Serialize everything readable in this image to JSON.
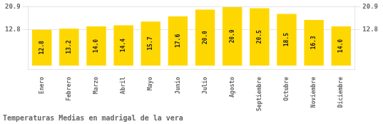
{
  "chart_data": {
    "type": "bar",
    "title": "Temperaturas Medias en madrigal de la vera",
    "categories": [
      "Enero",
      "Febrero",
      "Marzo",
      "Abril",
      "Mayo",
      "Junio",
      "Julio",
      "Agosto",
      "Septiembre",
      "Octubre",
      "Noviembre",
      "Diciembre"
    ],
    "values": [
      12.8,
      13.2,
      14.0,
      14.4,
      15.7,
      17.6,
      20.0,
      20.9,
      20.5,
      18.5,
      16.3,
      14.0
    ],
    "value_labels": [
      "12.8",
      "13.2",
      "14.0",
      "14.4",
      "15.7",
      "17.6",
      "20.0",
      "20.9",
      "20.5",
      "18.5",
      "16.3",
      "14.0"
    ],
    "color": "#FFD700",
    "ylim": [
      -1.5,
      21.3
    ],
    "yticks": [
      12.8,
      20.9
    ],
    "y2lim": [
      -1.5,
      21.3
    ],
    "y2ticks": [
      12.8,
      20.9
    ],
    "grid": true,
    "data_labels": true
  }
}
